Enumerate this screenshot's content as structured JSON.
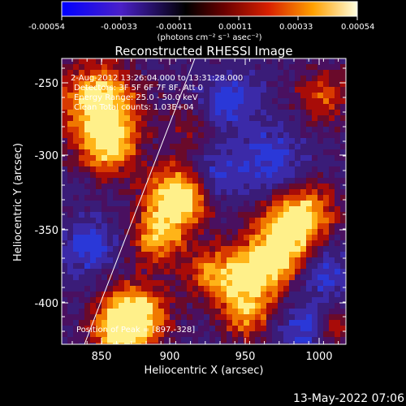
{
  "colorbar": {
    "tick_labels": [
      "-0.00054",
      "-0.00033",
      "-0.00011",
      "0.00011",
      "0.00033",
      "0.00054"
    ],
    "units": "(photons cm⁻² s⁻¹ asec⁻²)"
  },
  "image": {
    "title": "Reconstructed RHESSI Image",
    "info_lines": [
      "2-Aug-2012 13:26:04.000 to 13:31:28.000",
      "Detectors: 3F 5F 6F 7F 8F, Att 0",
      "Energy Range: 25.0 - 50.0 keV",
      "Clean     Total counts: 1.03E+04"
    ],
    "peak_label": "Position of Peak = [897,-328]"
  },
  "axes": {
    "xlabel": "Heliocentric X (arcsec)",
    "ylabel": "Heliocentric Y (arcsec)",
    "x_ticks": [
      "850",
      "900",
      "950",
      "1000"
    ],
    "y_ticks": [
      "-250",
      "-300",
      "-350",
      "-400"
    ]
  },
  "timestamp": "13-May-2022 07:06"
}
